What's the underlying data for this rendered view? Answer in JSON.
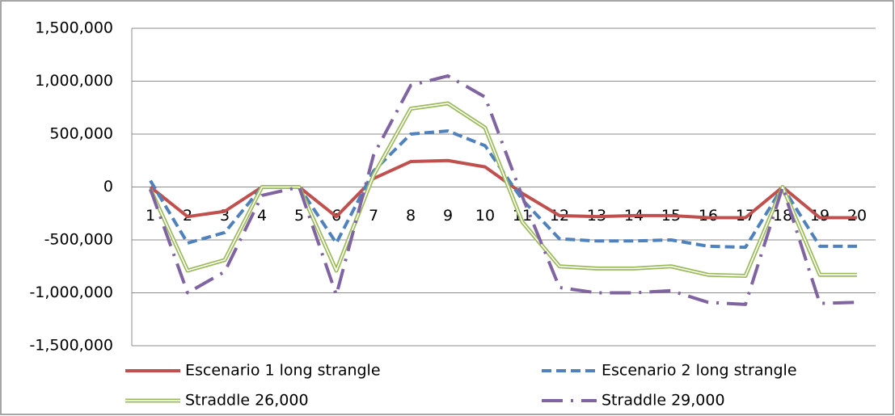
{
  "chart_data": {
    "type": "line",
    "categories": [
      "1",
      "2",
      "3",
      "4",
      "5",
      "6",
      "7",
      "8",
      "9",
      "10",
      "11",
      "12",
      "13",
      "14",
      "15",
      "16",
      "17",
      "18",
      "19",
      "20"
    ],
    "series": [
      {
        "name": "Escenario 1 long strangle",
        "color": "#c0504d",
        "style": "solid",
        "values": [
          0,
          -280000,
          -230000,
          0,
          0,
          -280000,
          80000,
          240000,
          250000,
          190000,
          -60000,
          -270000,
          -280000,
          -270000,
          -270000,
          -290000,
          -290000,
          0,
          -290000,
          -290000
        ]
      },
      {
        "name": "Escenario 2 long strangle",
        "color": "#4f81bd",
        "style": "dashed",
        "values": [
          60000,
          -530000,
          -430000,
          0,
          0,
          -530000,
          150000,
          500000,
          530000,
          390000,
          -120000,
          -490000,
          -510000,
          -510000,
          -500000,
          -560000,
          -570000,
          0,
          -560000,
          -560000
        ]
      },
      {
        "name": "Straddle 26,000",
        "color": "#9bbb59",
        "style": "double",
        "values": [
          -20000,
          -790000,
          -690000,
          0,
          0,
          -790000,
          110000,
          740000,
          790000,
          560000,
          -330000,
          -750000,
          -770000,
          -770000,
          -750000,
          -830000,
          -840000,
          0,
          -830000,
          -830000
        ]
      },
      {
        "name": "Straddle 29,000",
        "color": "#8064a2",
        "style": "dash-dot",
        "values": [
          -20000,
          -1000000,
          -800000,
          -80000,
          0,
          -1020000,
          300000,
          960000,
          1050000,
          850000,
          -90000,
          -950000,
          -1000000,
          -1000000,
          -980000,
          -1090000,
          -1110000,
          0,
          -1100000,
          -1090000
        ]
      }
    ],
    "ylim": [
      -1500000,
      1500000
    ],
    "yticks": [
      {
        "value": -1500000,
        "label": "-1,500,000"
      },
      {
        "value": -1000000,
        "label": "-1,000,000"
      },
      {
        "value": -500000,
        "label": "-500,000"
      },
      0,
      {
        "value": 500000,
        "label": "500,000"
      },
      {
        "value": 1000000,
        "label": "1,000,000"
      },
      {
        "value": 1500000,
        "label": "1,500,000"
      }
    ],
    "grid": true
  }
}
